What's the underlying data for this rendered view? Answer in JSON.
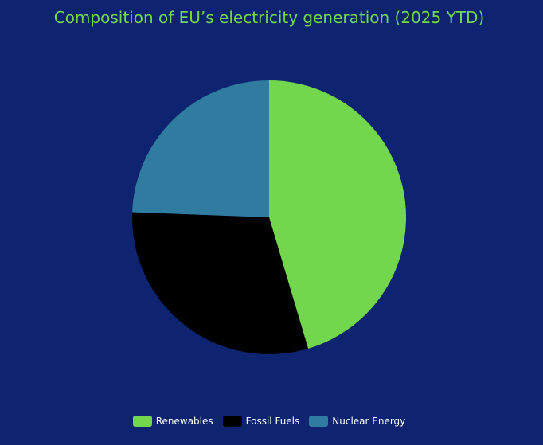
{
  "chart_data": {
    "type": "pie",
    "title": "Composition of EU’s electricity generation (2025 YTD)",
    "categories": [
      "Renewables",
      "Fossil Fuels",
      "Nuclear Energy"
    ],
    "values": [
      45.4,
      30.2,
      24.4
    ],
    "colors": [
      "#72d74c",
      "#000000",
      "#2f7ca0"
    ],
    "start_angle_deg": 0,
    "direction": "clockwise",
    "legend_position": "bottom"
  }
}
